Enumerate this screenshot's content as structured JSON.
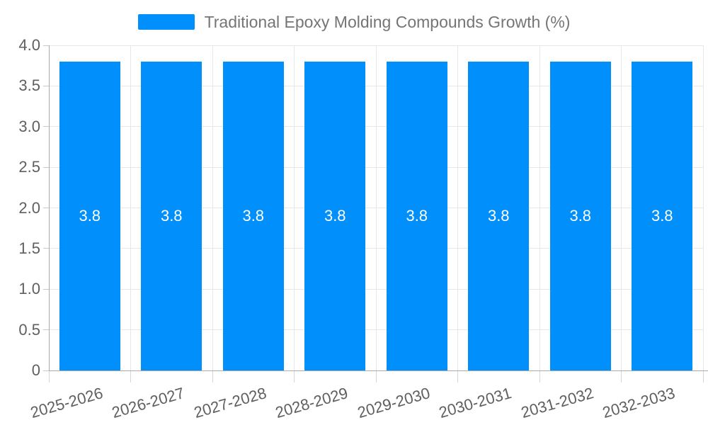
{
  "legend": {
    "label": "Traditional Epoxy Molding Compounds Growth (%)"
  },
  "chart_data": {
    "type": "bar",
    "title": "Traditional Epoxy Molding Compounds Growth (%)",
    "categories": [
      "2025-2026",
      "2026-2027",
      "2027-2028",
      "2028-2029",
      "2029-2030",
      "2030-2031",
      "2031-2032",
      "2032-2033"
    ],
    "series": [
      {
        "name": "Traditional Epoxy Molding Compounds Growth (%)",
        "values": [
          3.8,
          3.8,
          3.8,
          3.8,
          3.8,
          3.8,
          3.8,
          3.8
        ]
      }
    ],
    "bar_labels": [
      "3.8",
      "3.8",
      "3.8",
      "3.8",
      "3.8",
      "3.8",
      "3.8",
      "3.8"
    ],
    "xlabel": "",
    "ylabel": "",
    "ylim": [
      0,
      4
    ],
    "ytick_labels": [
      "0",
      "0.5",
      "1.0",
      "1.5",
      "2.0",
      "2.5",
      "3.0",
      "3.5",
      "4.0"
    ],
    "grid": true,
    "legend_position": "top",
    "colors": {
      "bar": "#008FFB",
      "grid": "#e7e7e7",
      "axis": "#ababab",
      "tick_label": "#5f5f5f",
      "legend_text": "#757575",
      "bar_label": "#ffffff"
    }
  }
}
